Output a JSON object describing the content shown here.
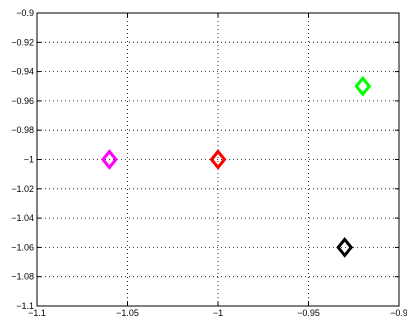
{
  "chart_data": {
    "type": "scatter",
    "title": "",
    "xlabel": "",
    "ylabel": "",
    "xlim": [
      -1.1,
      -0.9
    ],
    "ylim": [
      -1.1,
      -0.9
    ],
    "grid": true,
    "grid_style": "dotted",
    "marker": "diamond",
    "x_ticks": [
      -1.1,
      -1.05,
      -1.0,
      -0.95,
      -0.9
    ],
    "x_tick_labels": [
      "−1.1",
      "−1.05",
      "−1",
      "−0.95",
      "−0.9"
    ],
    "y_ticks": [
      -0.9,
      -0.92,
      -0.94,
      -0.96,
      -0.98,
      -1.0,
      -1.02,
      -1.04,
      -1.06,
      -1.08,
      -1.1
    ],
    "y_tick_labels": [
      "−0.9",
      "−0.92",
      "−0.94",
      "−0.96",
      "−0.98",
      "−1",
      "−1.02",
      "−1.04",
      "−1.06",
      "−1.08",
      "−1.1"
    ],
    "points": [
      {
        "x": -1.06,
        "y": -1.0,
        "color": "#ff00ff"
      },
      {
        "x": -1.0,
        "y": -1.0,
        "color": "#ff0000"
      },
      {
        "x": -0.92,
        "y": -0.95,
        "color": "#00ff00"
      },
      {
        "x": -0.93,
        "y": -1.06,
        "color": "#000000"
      }
    ]
  }
}
